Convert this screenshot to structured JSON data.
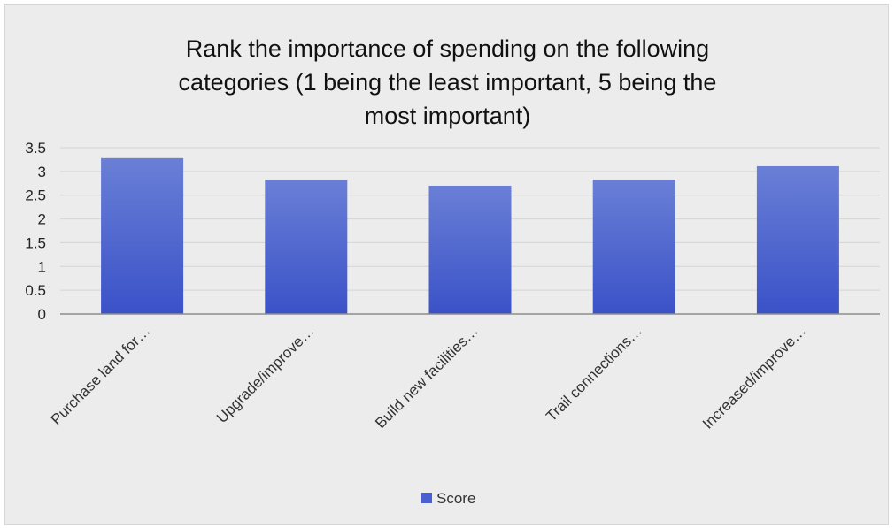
{
  "chart_data": {
    "type": "bar",
    "title": "Rank the importance of spending on the following categories (1 being the least important, 5 being the most important)",
    "title_lines": [
      "Rank the importance of spending on the following",
      "categories (1 being the least important, 5 being the",
      "most important)"
    ],
    "categories": [
      "Purchase land for…",
      "Upgrade/improve…",
      "Build new facilities…",
      "Trail connections…",
      "Increased/improve…"
    ],
    "series": [
      {
        "name": "Score",
        "values": [
          3.28,
          2.83,
          2.7,
          2.83,
          3.11
        ]
      }
    ],
    "y_ticks": [
      "0",
      "0.5",
      "1",
      "1.5",
      "2",
      "2.5",
      "3",
      "3.5"
    ],
    "ylim": [
      0,
      3.5
    ],
    "grid": true,
    "legend_position": "bottom",
    "bar_color": "#4a5fd0",
    "grid_color": "#d4d4d4",
    "axis_color": "#8c8c8c"
  }
}
